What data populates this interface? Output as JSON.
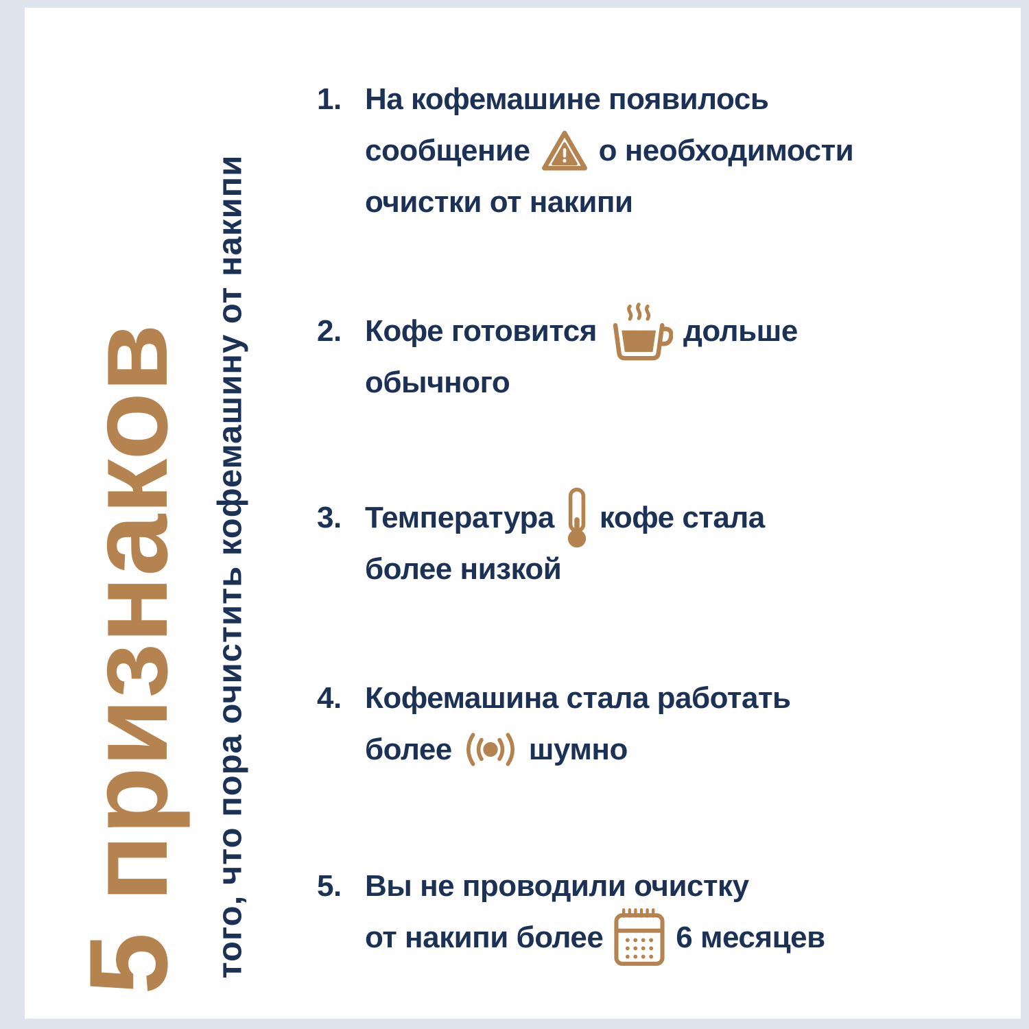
{
  "colors": {
    "accent_brown": "#b5834f",
    "navy": "#1b3156",
    "frame_blue": "#dee4ee",
    "card_white": "#ffffff"
  },
  "title": {
    "big": "5 признаков",
    "subtitle": "того, что пора очистить кофемашину от накипи"
  },
  "list": {
    "items": [
      {
        "number": "1.",
        "icon": "warning-icon",
        "lines": [
          [
            {
              "text": "На кофемашине появилось"
            }
          ],
          [
            {
              "text": "сообщение"
            },
            {
              "icon": "warning-icon"
            },
            {
              "text": "о необходимости"
            }
          ],
          [
            {
              "text": "очистки от накипи"
            }
          ]
        ]
      },
      {
        "number": "2.",
        "icon": "coffee-cup-icon",
        "lines": [
          [
            {
              "text": "Кофе готовится"
            },
            {
              "icon": "coffee-cup-icon"
            },
            {
              "text": "дольше"
            }
          ],
          [
            {
              "text": "обычного"
            }
          ]
        ]
      },
      {
        "number": "3.",
        "icon": "thermometer-icon",
        "lines": [
          [
            {
              "text": "Температура"
            },
            {
              "icon": "thermometer-icon"
            },
            {
              "text": "кофе стала"
            }
          ],
          [
            {
              "text": "более низкой"
            }
          ]
        ]
      },
      {
        "number": "4.",
        "icon": "noise-icon",
        "lines": [
          [
            {
              "text": "Кофемашина стала работать"
            }
          ],
          [
            {
              "text": "более"
            },
            {
              "icon": "noise-icon"
            },
            {
              "text": "шумно"
            }
          ]
        ]
      },
      {
        "number": "5.",
        "icon": "calendar-icon",
        "lines": [
          [
            {
              "text": "Вы не проводили очистку"
            }
          ],
          [
            {
              "text": "от накипи более"
            },
            {
              "icon": "calendar-icon"
            },
            {
              "text": "6 месяцев"
            }
          ]
        ]
      }
    ]
  }
}
